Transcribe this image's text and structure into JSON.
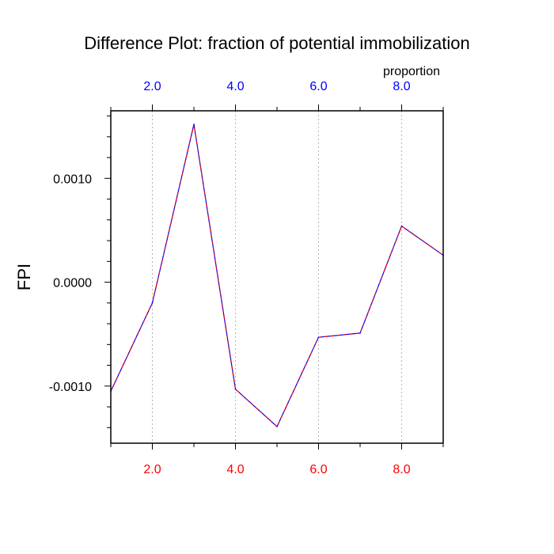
{
  "chart_data": {
    "type": "line",
    "title": "Difference Plot: fraction of potential immobilization",
    "ylabel": "FPI",
    "top_axis_label": "proportion",
    "x": [
      1,
      2,
      3,
      4,
      5,
      6,
      7,
      8,
      9
    ],
    "series": [
      {
        "values": [
          -0.00105,
          -0.0002,
          0.00152,
          -0.00103,
          -0.00139,
          -0.00053,
          -0.00049,
          0.00054,
          0.00026
        ],
        "colors": [
          "#0000ff",
          "#ff0000"
        ],
        "style": "dashed"
      }
    ],
    "xlim": [
      1,
      9
    ],
    "ylim": [
      -0.00155,
      0.00165
    ],
    "x_ticks": [
      {
        "value": 2,
        "label": "2.0"
      },
      {
        "value": 4,
        "label": "4.0"
      },
      {
        "value": 6,
        "label": "6.0"
      },
      {
        "value": 8,
        "label": "8.0"
      }
    ],
    "x_minor_ticks": [
      1,
      3,
      5,
      7,
      9
    ],
    "y_ticks": [
      {
        "value": -0.001,
        "label": "-0.0010"
      },
      {
        "value": 0,
        "label": "0.0000"
      },
      {
        "value": 0.001,
        "label": "0.0010"
      }
    ],
    "y_minor_step": 0.0002,
    "grid": "vertical-dotted",
    "bottom_tick_color": "#ff0000",
    "top_tick_color": "#0000ff",
    "gridline_color": "#b4b4b4"
  }
}
